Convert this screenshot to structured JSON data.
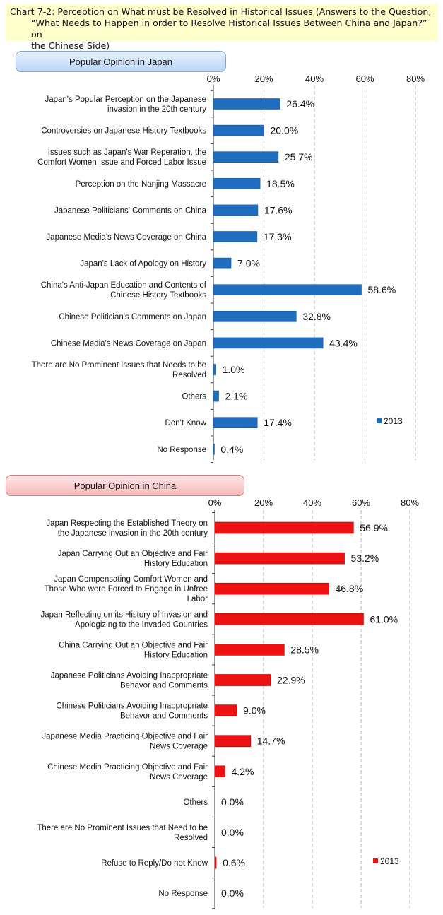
{
  "title": {
    "line1": "Chart 7-2: Perception on What must be Resolved in Historical Issues (Answers to the Question,",
    "line2": "“What Needs to Happen in order to Resolve Historical Issues Between China and Japan?” on",
    "line3": "the Chinese Side)"
  },
  "panels": {
    "japan_label": "Popular Opinion in Japan",
    "china_label": "Popular Opinion in China"
  },
  "colors": {
    "japan_bar": "#1f6dbf",
    "china_bar": "#ee1111",
    "grid": "#b5b5b5"
  },
  "chart_data": [
    {
      "type": "bar",
      "orientation": "horizontal",
      "title": "Popular Opinion in Japan",
      "xlim": [
        0,
        80
      ],
      "ticks": [
        "0%",
        "20%",
        "40%",
        "60%",
        "80%"
      ],
      "tick_values": [
        0,
        20,
        40,
        60,
        80
      ],
      "legend": "2013",
      "legend_position": "bottom-right",
      "categories": [
        [
          "Japan's Popular Perception on the Japanese",
          "invasion in the 20th century"
        ],
        [
          "Controversies on Japanese History Textbooks"
        ],
        [
          "Issues such as Japan's War Reperation, the",
          "Comfort Women Issue and Forced Labor Issue"
        ],
        [
          "Perception on the Nanjing Massacre"
        ],
        [
          "Japanese Politicians' Comments on China"
        ],
        [
          "Japanese Media's News Coverage on China"
        ],
        [
          "Japan's Lack of Apology on History"
        ],
        [
          "China's Anti-Japan Education and Contents of",
          "Chinese History Textbooks"
        ],
        [
          "Chinese Politician's Comments on Japan"
        ],
        [
          "Chinese Media's News Coverage on Japan"
        ],
        [
          "There are No Prominent Issues that Needs to be",
          "Resolved"
        ],
        [
          "Others"
        ],
        [
          "Don't Know"
        ],
        [
          "No Response"
        ]
      ],
      "values": [
        26.4,
        20.0,
        25.7,
        18.5,
        17.6,
        17.3,
        7.0,
        58.6,
        32.8,
        43.4,
        1.0,
        2.1,
        17.4,
        0.4
      ],
      "value_labels": [
        "26.4%",
        "20.0%",
        "25.7%",
        "18.5%",
        "17.6%",
        "17.3%",
        "7.0%",
        "58.6%",
        "32.8%",
        "43.4%",
        "1.0%",
        "2.1%",
        "17.4%",
        "0.4%"
      ]
    },
    {
      "type": "bar",
      "orientation": "horizontal",
      "title": "Popular Opinion in China",
      "xlim": [
        0,
        80
      ],
      "ticks": [
        "0%",
        "20%",
        "40%",
        "60%",
        "80%"
      ],
      "tick_values": [
        0,
        20,
        40,
        60,
        80
      ],
      "legend": "2013",
      "legend_position": "bottom-right",
      "categories": [
        [
          "Japan Respecting the Established Theory on",
          "the Japanese invasion in the 20th century"
        ],
        [
          "Japan Carrying Out an Objective and Fair",
          "History Education"
        ],
        [
          "Japan Compensating Comfort Women and",
          "Those Who were Forced to Engage in Unfree",
          "Labor"
        ],
        [
          "Japan Reflecting on its History of Invasion and",
          "Apologizing to the Invaded Countries"
        ],
        [
          "China Carrying Out an Objective and Fair",
          "History Education"
        ],
        [
          "Japanese Politicians Avoiding Inappropriate",
          "Behavor and Comments"
        ],
        [
          "Chinese Politicians Avoiding Inappropriate",
          "Behavor and Comments"
        ],
        [
          "Japanese Media Practicing Objective and Fair",
          "News Coverage"
        ],
        [
          "Chinese Media Practicing Objective and Fair",
          "News Coverage"
        ],
        [
          "Others"
        ],
        [
          "There are No Prominent Issues that Need to be",
          "Resolved"
        ],
        [
          "Refuse to Reply/Do not Know"
        ],
        [
          "No Response"
        ]
      ],
      "values": [
        56.9,
        53.2,
        46.8,
        61.0,
        28.5,
        22.9,
        9.0,
        14.7,
        4.2,
        0.0,
        0.0,
        0.6,
        0.0
      ],
      "value_labels": [
        "56.9%",
        "53.2%",
        "46.8%",
        "61.0%",
        "28.5%",
        "22.9%",
        "9.0%",
        "14.7%",
        "4.2%",
        "0.0%",
        "0.0%",
        "0.6%",
        "0.0%"
      ]
    }
  ]
}
